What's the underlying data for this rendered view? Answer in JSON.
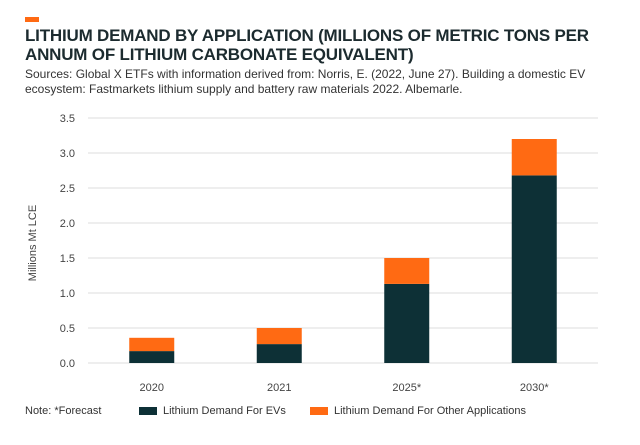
{
  "header": {
    "title": "LITHIUM DEMAND BY APPLICATION (MILLIONS OF METRIC TONS PER ANNUM OF LITHIUM CARBONATE EQUIVALENT)",
    "sources": "Sources: Global X ETFs with information derived from: Norris, E. (2022, June 27). Building a domestic EV ecosystem: Fastmarkets lithium supply and battery raw materials 2022. Albemarle."
  },
  "note": "Note: *Forecast",
  "colors": {
    "accent": "#ff6a13",
    "ev": "#0d3036",
    "other": "#ff6a13",
    "grid": "#dcdcdc",
    "title": "#1c2b2f"
  },
  "chart_data": {
    "type": "bar",
    "stacked": true,
    "categories": [
      "2020",
      "2021",
      "2025*",
      "2030*"
    ],
    "series": [
      {
        "name": "Lithium Demand For EVs",
        "values": [
          0.17,
          0.27,
          1.13,
          2.68
        ]
      },
      {
        "name": "Lithium Demand For Other Applications",
        "values": [
          0.19,
          0.23,
          0.37,
          0.52
        ]
      }
    ],
    "ylabel": "Millions Mt LCE",
    "ylim": [
      0,
      3.5
    ],
    "yticks": [
      "0.0",
      "0.5",
      "1.0",
      "1.5",
      "2.0",
      "2.5",
      "3.0",
      "3.5"
    ],
    "grid": true,
    "legend": "bottom"
  }
}
